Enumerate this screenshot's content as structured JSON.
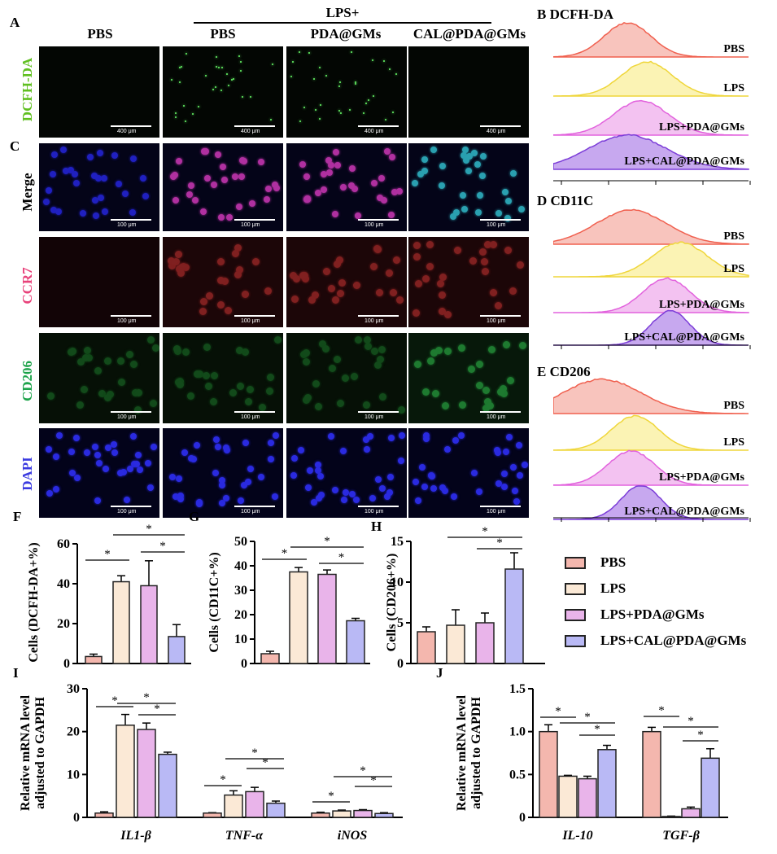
{
  "panelA": {
    "label": "A",
    "group_header": "LPS+",
    "columns": [
      "PBS",
      "PBS",
      "PDA@GMs",
      "CAL@PDA@GMs"
    ],
    "row_label": "DCFH-DA",
    "row_color": "#5fbf1f",
    "scale": "400 μm"
  },
  "panelC": {
    "label": "C",
    "rows": [
      {
        "label": "Merge",
        "color": "#000000"
      },
      {
        "label": "CCR7",
        "color": "#e8417a"
      },
      {
        "label": "CD206",
        "color": "#1da34a"
      },
      {
        "label": "DAPI",
        "color": "#3a3ae0"
      }
    ],
    "scale": "100 μm"
  },
  "flow": [
    {
      "label": "B",
      "title": "DCFH-DA",
      "samples": [
        "PBS",
        "LPS",
        "LPS+PDA@GMs",
        "LPS+CAL@PDA@GMs"
      ]
    },
    {
      "label": "D",
      "title": "CD11C",
      "samples": [
        "PBS",
        "LPS",
        "LPS+PDA@GMs",
        "LPS+CAL@PDA@GMs"
      ]
    },
    {
      "label": "E",
      "title": "CD206",
      "samples": [
        "PBS",
        "LPS",
        "LPS+PDA@GMs",
        "LPS+CAL@PDA@GMs"
      ]
    }
  ],
  "legend": {
    "items": [
      {
        "name": "PBS",
        "color": "#f4b7ae"
      },
      {
        "name": "LPS",
        "color": "#fbe9d6"
      },
      {
        "name": "LPS+PDA@GMs",
        "color": "#e9b4ea"
      },
      {
        "name": "LPS+CAL@PDA@GMs",
        "color": "#b9b9f5"
      }
    ]
  },
  "chart_data": [
    {
      "label": "F",
      "type": "bar",
      "ylabel": "Cells (DCFH-DA+%)",
      "ylim": [
        0,
        60
      ],
      "yticks": [
        0,
        20,
        40,
        60
      ],
      "groups": [
        {
          "name": "",
          "values": [
            3.5,
            41,
            39,
            13.5
          ],
          "errors": [
            1.2,
            3,
            12.5,
            6
          ]
        }
      ]
    },
    {
      "label": "G",
      "type": "bar",
      "ylabel": "Cells (CD11C+%)",
      "ylim": [
        0,
        50
      ],
      "yticks": [
        0,
        10,
        20,
        30,
        40,
        50
      ],
      "groups": [
        {
          "name": "",
          "values": [
            4,
            37.5,
            36.5,
            17.5
          ],
          "errors": [
            1,
            1.8,
            1.8,
            1
          ]
        }
      ]
    },
    {
      "label": "H",
      "type": "bar",
      "ylabel": "Cells (CD206+%)",
      "ylim": [
        0,
        15
      ],
      "yticks": [
        0,
        5,
        10,
        15
      ],
      "groups": [
        {
          "name": "",
          "values": [
            3.9,
            4.7,
            5,
            11.6
          ],
          "errors": [
            0.6,
            1.9,
            1.2,
            2
          ]
        }
      ]
    },
    {
      "label": "I",
      "type": "bar",
      "ylabel": "Relative mRNA level adjusted to GAPDH",
      "ylim": [
        0,
        30
      ],
      "yticks": [
        0,
        10,
        20,
        30
      ],
      "groups": [
        {
          "name": "IL1-β",
          "values": [
            1,
            21.5,
            20.5,
            14.7
          ],
          "errors": [
            0.3,
            2.5,
            1.5,
            0.5
          ]
        },
        {
          "name": "TNF-α",
          "values": [
            1,
            5.2,
            6,
            3.3
          ],
          "errors": [
            0.1,
            1,
            1,
            0.5
          ]
        },
        {
          "name": "iNOS",
          "values": [
            1,
            1.5,
            1.6,
            0.9
          ],
          "errors": [
            0.2,
            0.2,
            0.2,
            0.2
          ]
        }
      ]
    },
    {
      "label": "J",
      "type": "bar",
      "ylabel": "Relative mRNA level adjusted to GAPDH",
      "ylim": [
        0,
        1.5
      ],
      "yticks": [
        0,
        0.5,
        1.0,
        1.5
      ],
      "groups": [
        {
          "name": "IL-10",
          "values": [
            1,
            0.48,
            0.45,
            0.79
          ],
          "errors": [
            0.08,
            0.01,
            0.03,
            0.05
          ]
        },
        {
          "name": "TGF-β",
          "values": [
            1,
            0.01,
            0.1,
            0.69
          ],
          "errors": [
            0.05,
            0.005,
            0.02,
            0.11
          ]
        }
      ]
    }
  ],
  "sig_mark": "*"
}
